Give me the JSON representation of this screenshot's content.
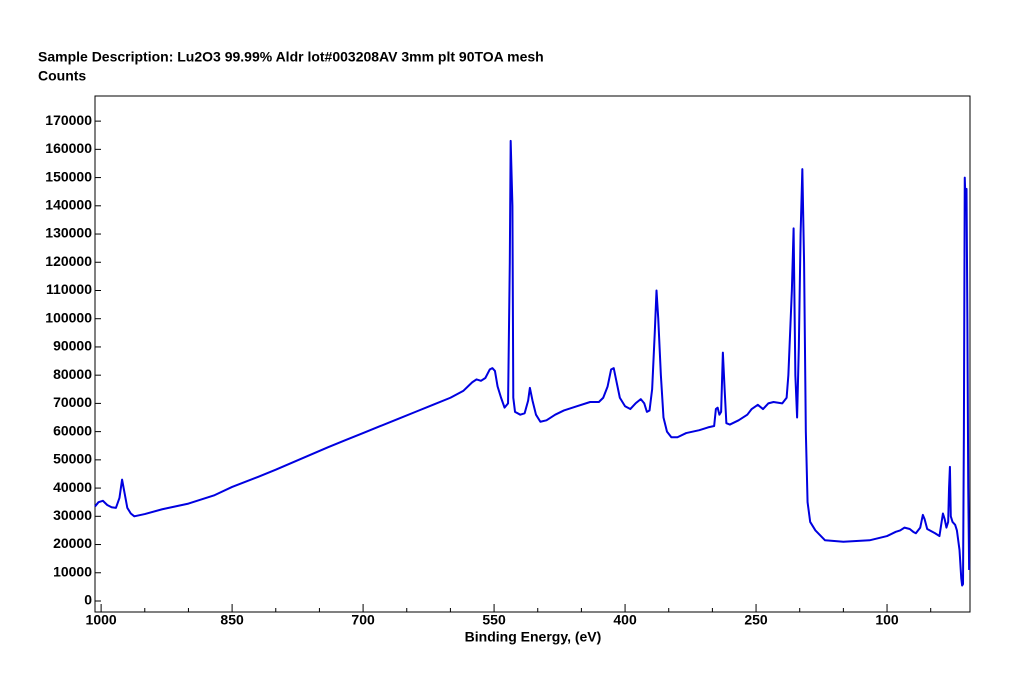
{
  "chart_data": {
    "type": "line",
    "title": "Sample Description:  Lu2O3 99.99% Aldr lot#003208AV 3mm plt 90TOA mesh",
    "ylabel": "Counts",
    "xlabel": "Binding Energy, (eV)",
    "color": "#0000e0",
    "xlim": [
      1007,
      5
    ],
    "ylim": [
      -3900,
      178900
    ],
    "xticks": [
      1000,
      850,
      700,
      550,
      400,
      250,
      100
    ],
    "xminorticks": [
      950,
      900,
      800,
      750,
      650,
      600,
      500,
      450,
      350,
      300,
      200,
      150,
      50
    ],
    "yticks": [
      0,
      10000,
      20000,
      30000,
      40000,
      50000,
      60000,
      70000,
      80000,
      90000,
      100000,
      110000,
      120000,
      130000,
      140000,
      150000,
      160000,
      170000
    ],
    "x": [
      1007,
      1003,
      998,
      993,
      988,
      983,
      979,
      976,
      973,
      970,
      966,
      962,
      950,
      930,
      900,
      870,
      850,
      820,
      800,
      770,
      740,
      720,
      700,
      680,
      660,
      640,
      620,
      600,
      585,
      575,
      570,
      565,
      560,
      555,
      552,
      549,
      546,
      542,
      538,
      534,
      532,
      531,
      529,
      528,
      526,
      520,
      515,
      511,
      509,
      506,
      502,
      497,
      490,
      480,
      470,
      455,
      440,
      430,
      425,
      420,
      416,
      413,
      410,
      406,
      400,
      394,
      388,
      382,
      378,
      375,
      372,
      369,
      366,
      364,
      362,
      359,
      356,
      352,
      347,
      340,
      330,
      315,
      305,
      298,
      296,
      294,
      292,
      290,
      288,
      286,
      284,
      280,
      270,
      260,
      255,
      248,
      242,
      236,
      230,
      220,
      215,
      213,
      209,
      207,
      205,
      203,
      201,
      199,
      197,
      195,
      193,
      191,
      188,
      182,
      171,
      150,
      120,
      100,
      90,
      85,
      80,
      74,
      70,
      67,
      62,
      59,
      57,
      54,
      45,
      40,
      38,
      36,
      34,
      32,
      30,
      29,
      28,
      27,
      25,
      22,
      20,
      17,
      15,
      14,
      13,
      12,
      11,
      10,
      9,
      8,
      7,
      6
    ],
    "values": [
      33500,
      35000,
      35500,
      34000,
      33200,
      33000,
      36500,
      43000,
      38000,
      33000,
      31000,
      30000,
      30800,
      32500,
      34500,
      37500,
      40400,
      44000,
      46500,
      50500,
      54500,
      57000,
      59500,
      62000,
      64500,
      67000,
      69500,
      72000,
      74500,
      77500,
      78500,
      78000,
      79000,
      82000,
      82500,
      81500,
      76000,
      72000,
      68500,
      70000,
      120000,
      163000,
      140000,
      72000,
      67000,
      66000,
      66500,
      71000,
      75500,
      71000,
      66000,
      63500,
      64000,
      66000,
      67500,
      69000,
      70500,
      70500,
      72000,
      76000,
      82000,
      82500,
      78000,
      72000,
      69000,
      68000,
      70000,
      71500,
      70000,
      67000,
      67500,
      75000,
      95000,
      110000,
      100000,
      80000,
      65000,
      60000,
      58000,
      58000,
      59500,
      60500,
      61500,
      62000,
      68000,
      68500,
      66000,
      67000,
      88000,
      75000,
      63000,
      62500,
      64000,
      66000,
      68000,
      69500,
      68000,
      70000,
      70500,
      70000,
      72000,
      80000,
      110000,
      132000,
      80000,
      65000,
      90000,
      130000,
      153000,
      120000,
      60000,
      35000,
      28000,
      25000,
      21500,
      21000,
      21500,
      23000,
      24500,
      25000,
      26000,
      25500,
      24500,
      24000,
      26000,
      30500,
      29000,
      25500,
      24000,
      23000,
      27000,
      31000,
      29000,
      26000,
      28000,
      40000,
      47500,
      30000,
      28000,
      27000,
      25000,
      18000,
      8000,
      5500,
      6000,
      60000,
      150000,
      140000,
      146000,
      100000,
      40000,
      11000
    ]
  }
}
